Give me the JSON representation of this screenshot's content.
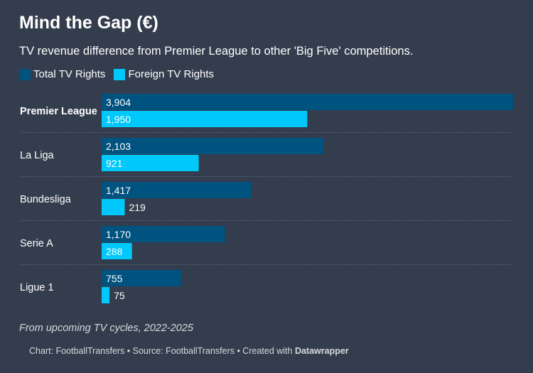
{
  "title": "Mind the Gap (€)",
  "subtitle": "TV revenue difference from Premier League to other 'Big Five' competitions.",
  "note": "From upcoming TV cycles, 2022-2025",
  "footer": {
    "prefix": "Chart: FootballTransfers • Source: FootballTransfers • Created with ",
    "brand": "Datawrapper"
  },
  "colors": {
    "background": "#333d4d",
    "total": "#00527f",
    "foreign": "#00c8fa",
    "separator": "#5a6474"
  },
  "chart_data": {
    "type": "bar",
    "orientation": "horizontal",
    "categories": [
      "Premier League",
      "La Liga",
      "Bundesliga",
      "Serie A",
      "Ligue 1"
    ],
    "highlighted_category": "Premier League",
    "series": [
      {
        "name": "Total TV Rights",
        "values": [
          3904,
          2103,
          1417,
          1170,
          755
        ]
      },
      {
        "name": "Foreign TV Rights",
        "values": [
          1950,
          921,
          219,
          288,
          75
        ]
      }
    ],
    "value_labels": [
      [
        "3,904",
        "2,103",
        "1,417",
        "1,170",
        "755"
      ],
      [
        "1,950",
        "921",
        "219",
        "288",
        "75"
      ]
    ],
    "xlim": [
      0,
      3904
    ],
    "legend_position": "top-left",
    "grid": false
  }
}
